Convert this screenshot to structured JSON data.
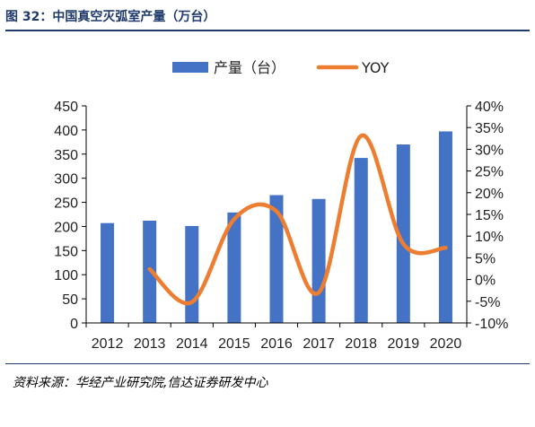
{
  "figure": {
    "title": "图 32：中国真空灭弧室产量（万台）",
    "source": "资料来源：华经产业研究院,信达证券研发中心"
  },
  "chart_data": {
    "type": "bar+line",
    "categories": [
      "2012",
      "2013",
      "2014",
      "2015",
      "2016",
      "2017",
      "2018",
      "2019",
      "2020"
    ],
    "series": [
      {
        "name": "产量（台）",
        "type": "bar",
        "axis": "left",
        "color": "#4472c4",
        "values": [
          207,
          212,
          201,
          229,
          265,
          257,
          342,
          370,
          397
        ]
      },
      {
        "name": "YOY",
        "type": "line",
        "axis": "right",
        "color": "#ed7d31",
        "values": [
          null,
          2.4,
          -5.2,
          13.9,
          15.7,
          -3.0,
          33.1,
          8.2,
          7.3
        ]
      }
    ],
    "y_left": {
      "min": 0,
      "max": 450,
      "step": 50,
      "ticks": [
        "0",
        "50",
        "100",
        "150",
        "200",
        "250",
        "300",
        "350",
        "400",
        "450"
      ]
    },
    "y_right": {
      "min": -10,
      "max": 40,
      "step": 5,
      "ticks": [
        "-10%",
        "-5%",
        "0%",
        "5%",
        "10%",
        "15%",
        "20%",
        "25%",
        "30%",
        "35%",
        "40%"
      ]
    },
    "legend": {
      "position": "top",
      "entries": [
        "产量（台）",
        "YOY"
      ]
    },
    "grid": false
  }
}
